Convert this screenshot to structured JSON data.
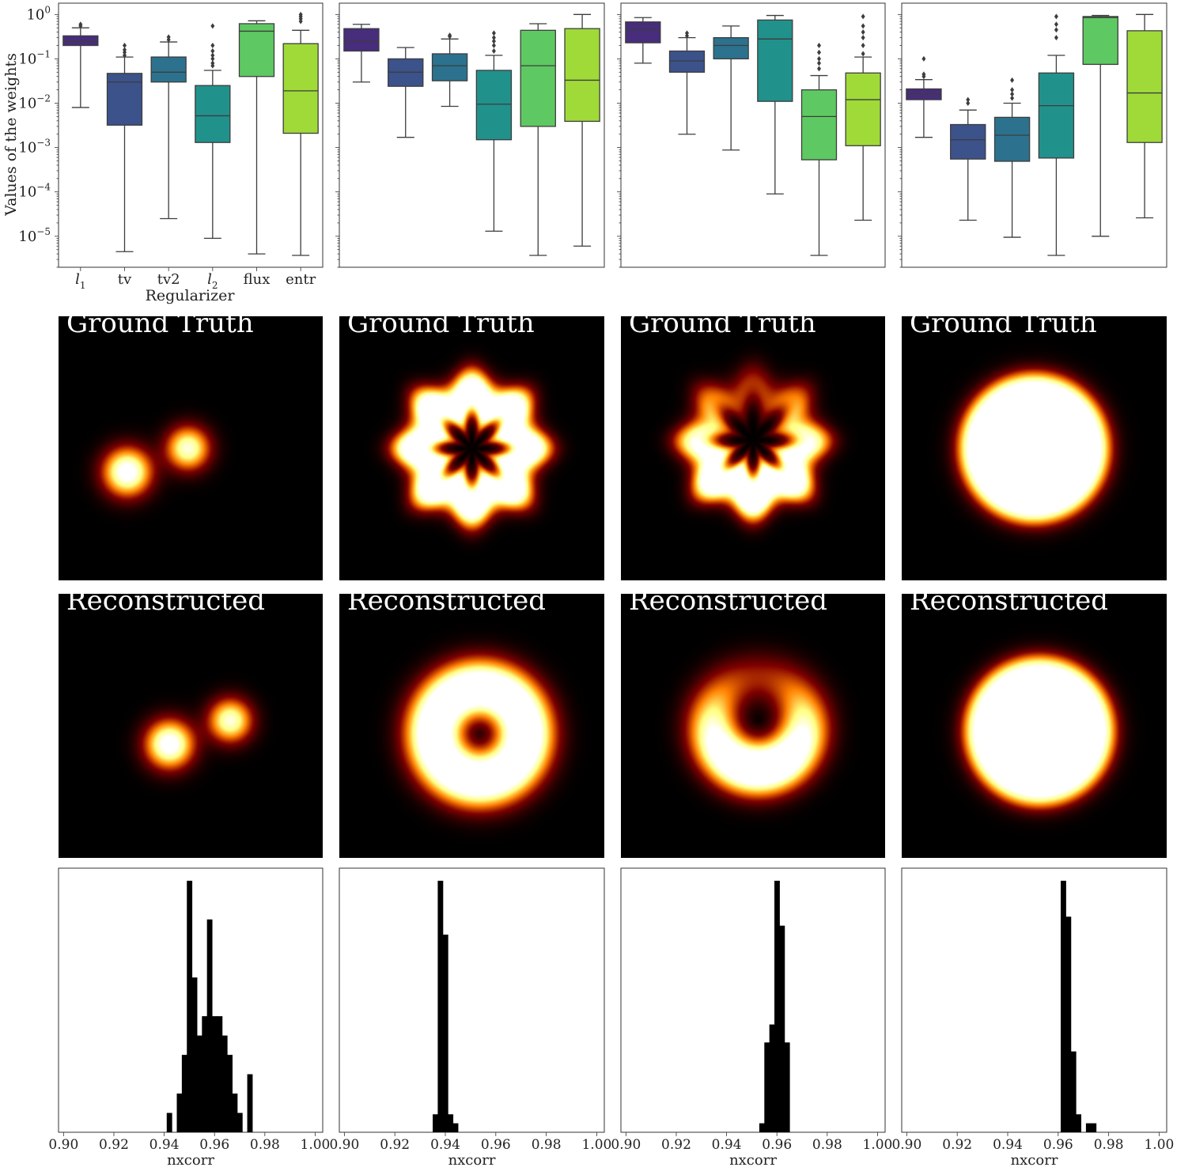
{
  "figure": {
    "ground_truth_label": "Ground Truth",
    "reconstructed_label": "Reconstructed"
  },
  "chart_data": [
    {
      "type": "box",
      "panel": 1,
      "ylabel": "Values of the weights",
      "xlabel": "Regularizer",
      "yscale": "log",
      "ylim": [
        2e-06,
        1.8
      ],
      "ytick_labels": [
        "10^0",
        "10^-1",
        "10^-2",
        "10^-3",
        "10^-4",
        "10^-5"
      ],
      "categories": [
        "l1",
        "tv",
        "tv2",
        "l2",
        "flux",
        "entr"
      ],
      "colors": [
        "#472d7b",
        "#3b528b",
        "#2c728e",
        "#21918c",
        "#5ec962",
        "#a0da39"
      ],
      "boxes": [
        {
          "whislo": 0.008,
          "q1": 0.2,
          "med": 0.25,
          "q3": 0.33,
          "whishi": 0.5,
          "fliers": [
            0.55,
            0.6
          ]
        },
        {
          "whislo": 4.5e-06,
          "q1": 0.0032,
          "med": 0.03,
          "q3": 0.047,
          "whishi": 0.11,
          "fliers": [
            0.12,
            0.14,
            0.16,
            0.2
          ]
        },
        {
          "whislo": 2.5e-05,
          "q1": 0.03,
          "med": 0.05,
          "q3": 0.11,
          "whishi": 0.24,
          "fliers": [
            0.27,
            0.31
          ]
        },
        {
          "whislo": 9e-06,
          "q1": 0.0013,
          "med": 0.0052,
          "q3": 0.025,
          "whishi": 0.055,
          "fliers": [
            0.07,
            0.08,
            0.1,
            0.12,
            0.15,
            0.2,
            0.55
          ]
        },
        {
          "whislo": 4e-06,
          "q1": 0.04,
          "med": 0.42,
          "q3": 0.62,
          "whishi": 0.72,
          "fliers": []
        },
        {
          "whislo": 3.7e-06,
          "q1": 0.0021,
          "med": 0.019,
          "q3": 0.22,
          "whishi": 0.44,
          "fliers": [
            0.7,
            0.8,
            0.9,
            1.0
          ]
        }
      ]
    },
    {
      "type": "box",
      "panel": 2,
      "yscale": "log",
      "ylim": [
        2e-06,
        1.8
      ],
      "colors": [
        "#472d7b",
        "#3b528b",
        "#2c728e",
        "#21918c",
        "#5ec962",
        "#a0da39"
      ],
      "boxes": [
        {
          "whislo": 0.03,
          "q1": 0.15,
          "med": 0.25,
          "q3": 0.48,
          "whishi": 0.6,
          "fliers": []
        },
        {
          "whislo": 0.0017,
          "q1": 0.024,
          "med": 0.05,
          "q3": 0.1,
          "whishi": 0.18,
          "fliers": []
        },
        {
          "whislo": 0.0085,
          "q1": 0.032,
          "med": 0.07,
          "q3": 0.13,
          "whishi": 0.28,
          "fliers": [
            0.32,
            0.34
          ]
        },
        {
          "whislo": 1.3e-05,
          "q1": 0.0015,
          "med": 0.0095,
          "q3": 0.055,
          "whishi": 0.12,
          "fliers": [
            0.15,
            0.2,
            0.25,
            0.3,
            0.38
          ]
        },
        {
          "whislo": 3.7e-06,
          "q1": 0.003,
          "med": 0.07,
          "q3": 0.44,
          "whishi": 0.62,
          "fliers": []
        },
        {
          "whislo": 6e-06,
          "q1": 0.0039,
          "med": 0.033,
          "q3": 0.48,
          "whishi": 1.0,
          "fliers": []
        }
      ]
    },
    {
      "type": "box",
      "panel": 3,
      "yscale": "log",
      "ylim": [
        2e-06,
        1.8
      ],
      "colors": [
        "#472d7b",
        "#3b528b",
        "#2c728e",
        "#21918c",
        "#5ec962",
        "#a0da39"
      ],
      "boxes": [
        {
          "whislo": 0.08,
          "q1": 0.23,
          "med": 0.45,
          "q3": 0.68,
          "whishi": 0.85,
          "fliers": []
        },
        {
          "whislo": 0.002,
          "q1": 0.05,
          "med": 0.09,
          "q3": 0.15,
          "whishi": 0.3,
          "fliers": [
            0.33,
            0.38
          ]
        },
        {
          "whislo": 0.00088,
          "q1": 0.1,
          "med": 0.2,
          "q3": 0.3,
          "whishi": 0.55,
          "fliers": []
        },
        {
          "whislo": 9e-05,
          "q1": 0.011,
          "med": 0.28,
          "q3": 0.75,
          "whishi": 0.95,
          "fliers": []
        },
        {
          "whislo": 3.7e-06,
          "q1": 0.00053,
          "med": 0.005,
          "q3": 0.02,
          "whishi": 0.042,
          "fliers": [
            0.06,
            0.08,
            0.1,
            0.14,
            0.2
          ]
        },
        {
          "whislo": 2.3e-05,
          "q1": 0.0011,
          "med": 0.012,
          "q3": 0.048,
          "whishi": 0.11,
          "fliers": [
            0.13,
            0.2,
            0.3,
            0.4,
            0.55,
            0.9
          ]
        }
      ]
    },
    {
      "type": "box",
      "panel": 4,
      "yscale": "log",
      "ylim": [
        2e-06,
        1.8
      ],
      "colors": [
        "#472d7b",
        "#3b528b",
        "#2c728e",
        "#21918c",
        "#5ec962",
        "#a0da39"
      ],
      "boxes": [
        {
          "whislo": 0.0017,
          "q1": 0.012,
          "med": 0.016,
          "q3": 0.021,
          "whishi": 0.034,
          "fliers": [
            0.04,
            0.045,
            0.1
          ]
        },
        {
          "whislo": 2.3e-05,
          "q1": 0.00055,
          "med": 0.0015,
          "q3": 0.0033,
          "whishi": 0.007,
          "fliers": [
            0.01,
            0.012
          ]
        },
        {
          "whislo": 9.5e-06,
          "q1": 0.00049,
          "med": 0.0019,
          "q3": 0.0048,
          "whishi": 0.01,
          "fliers": [
            0.013,
            0.016,
            0.02,
            0.033
          ]
        },
        {
          "whislo": 3.7e-06,
          "q1": 0.00058,
          "med": 0.0088,
          "q3": 0.048,
          "whishi": 0.12,
          "fliers": [
            0.3,
            0.45,
            0.6,
            0.9
          ]
        },
        {
          "whislo": 1e-05,
          "q1": 0.075,
          "med": 0.85,
          "q3": 0.9,
          "whishi": 0.95,
          "fliers": []
        },
        {
          "whislo": 2.6e-05,
          "q1": 0.0013,
          "med": 0.017,
          "q3": 0.43,
          "whishi": 1.0,
          "fliers": []
        }
      ]
    },
    {
      "type": "image",
      "panel": 5,
      "title": "Ground Truth",
      "colormap": "afmhot",
      "blobs": [
        {
          "x": 0.26,
          "y": 0.59,
          "r": 0.11,
          "weight": 0.9
        },
        {
          "x": 0.49,
          "y": 0.5,
          "r": 0.1,
          "weight": 0.75
        }
      ]
    },
    {
      "type": "image",
      "panel": 6,
      "title": "Ground Truth",
      "colormap": "afmhot",
      "ring": {
        "x": 0.5,
        "y": 0.5,
        "radius": 0.19,
        "width": 0.1,
        "weight": 1.0,
        "scallops": 8,
        "scallop_amp": 0.025
      }
    },
    {
      "type": "image",
      "panel": 7,
      "title": "Ground Truth",
      "colormap": "afmhot",
      "ring": {
        "x": 0.5,
        "y": 0.47,
        "radius": 0.19,
        "width": 0.1,
        "weight": 0.95,
        "scallops": 8,
        "scallop_amp": 0.025,
        "asymmetry": 0.75
      }
    },
    {
      "type": "image",
      "panel": 8,
      "title": "Ground Truth",
      "colormap": "afmhot",
      "disk": {
        "x": 0.5,
        "y": 0.5,
        "radius": 0.27,
        "weight": 1.0
      }
    },
    {
      "type": "image",
      "panel": 9,
      "title": "Reconstructed",
      "colormap": "afmhot",
      "blobs": [
        {
          "x": 0.42,
          "y": 0.57,
          "r": 0.11,
          "weight": 0.9
        },
        {
          "x": 0.65,
          "y": 0.48,
          "r": 0.1,
          "weight": 0.75
        }
      ]
    },
    {
      "type": "image",
      "panel": 10,
      "title": "Reconstructed",
      "colormap": "afmhot",
      "ring": {
        "x": 0.53,
        "y": 0.53,
        "radius": 0.17,
        "width": 0.13,
        "weight": 1.0
      }
    },
    {
      "type": "image",
      "panel": 11,
      "title": "Reconstructed",
      "colormap": "afmhot",
      "ring": {
        "x": 0.52,
        "y": 0.49,
        "radius": 0.17,
        "width": 0.12,
        "weight": 0.9,
        "asymmetry": 0.75
      }
    },
    {
      "type": "image",
      "panel": 12,
      "title": "Reconstructed",
      "colormap": "afmhot",
      "disk": {
        "x": 0.52,
        "y": 0.52,
        "radius": 0.27,
        "weight": 0.95
      }
    },
    {
      "type": "histogram",
      "panel": 13,
      "xlabel": "nxcorr",
      "xlim": [
        0.898,
        1.003
      ],
      "xtick_labels": [
        "0.90",
        "0.92",
        "0.94",
        "0.96",
        "0.98",
        "1.00"
      ],
      "xticks": [
        0.9,
        0.92,
        0.94,
        0.96,
        0.98,
        1.0
      ],
      "bins": [
        0.941,
        0.943,
        0.945,
        0.947,
        0.949,
        0.951,
        0.953,
        0.955,
        0.957,
        0.959,
        0.961,
        0.963,
        0.965,
        0.967,
        0.969,
        0.971,
        0.973,
        0.975,
        0.977,
        0.979
      ],
      "counts": [
        1,
        0,
        2,
        4,
        13,
        8,
        5,
        6,
        11,
        6,
        6,
        5,
        4,
        2,
        1,
        0,
        3,
        0,
        0
      ]
    },
    {
      "type": "histogram",
      "panel": 14,
      "xlabel": "nxcorr",
      "xlim": [
        0.898,
        1.003
      ],
      "xtick_labels": [
        "0.90",
        "0.92",
        "0.94",
        "0.96",
        "0.98",
        "1.00"
      ],
      "xticks": [
        0.9,
        0.92,
        0.94,
        0.96,
        0.98,
        1.0
      ],
      "bins": [
        0.935,
        0.937,
        0.939,
        0.941,
        0.943,
        0.945
      ],
      "counts": [
        2,
        28,
        22,
        2,
        1
      ]
    },
    {
      "type": "histogram",
      "panel": 15,
      "xlabel": "nxcorr",
      "xlim": [
        0.898,
        1.003
      ],
      "xtick_labels": [
        "0.90",
        "0.92",
        "0.94",
        "0.96",
        "0.98",
        "1.00"
      ],
      "xticks": [
        0.9,
        0.92,
        0.94,
        0.96,
        0.98,
        1.0
      ],
      "bins": [
        0.953,
        0.955,
        0.957,
        0.959,
        0.961,
        0.963,
        0.965
      ],
      "counts": [
        1,
        10,
        12,
        28,
        23,
        10
      ]
    },
    {
      "type": "histogram",
      "panel": 16,
      "xlabel": "nxcorr",
      "xlim": [
        0.898,
        1.003
      ],
      "xtick_labels": [
        "0.90",
        "0.92",
        "0.94",
        "0.96",
        "0.98",
        "1.00"
      ],
      "xticks": [
        0.9,
        0.92,
        0.94,
        0.96,
        0.98,
        1.0
      ],
      "bins": [
        0.961,
        0.963,
        0.965,
        0.967,
        0.969,
        0.971,
        0.973,
        0.975
      ],
      "counts": [
        28,
        24,
        9,
        2,
        0,
        1,
        1
      ]
    }
  ]
}
